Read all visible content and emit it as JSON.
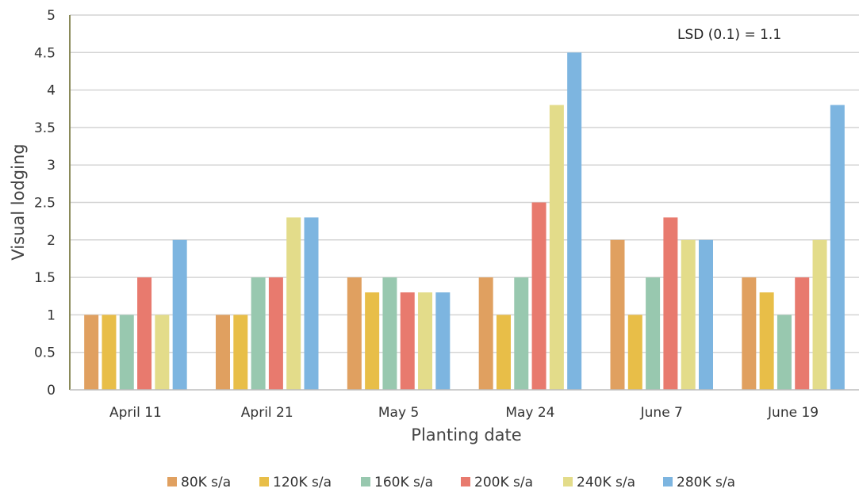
{
  "chart_data": {
    "type": "bar",
    "title": "",
    "xlabel": "Planting date",
    "ylabel": "Visual lodging",
    "ylim": [
      0,
      5
    ],
    "yticks": [
      "0",
      "0.5",
      "1",
      "1.5",
      "2",
      "2.5",
      "3",
      "3.5",
      "4",
      "4.5",
      "5"
    ],
    "ytick_values": [
      0,
      0.5,
      1,
      1.5,
      2,
      2.5,
      3,
      3.5,
      4,
      4.5,
      5
    ],
    "grid": true,
    "legend_position": "bottom",
    "annotation": "LSD (0.1) = 1.1",
    "categories": [
      "April 11",
      "April 21",
      "May 5",
      "May 24",
      "June 7",
      "June 19"
    ],
    "series": [
      {
        "name": "80K s/a",
        "color": "#E0A060",
        "values": [
          1,
          1,
          1.5,
          1.5,
          2,
          1.5
        ]
      },
      {
        "name": "120K s/a",
        "color": "#E8BE48",
        "values": [
          1,
          1,
          1.3,
          1,
          1,
          1.3
        ]
      },
      {
        "name": "160K s/a",
        "color": "#98C8AF",
        "values": [
          1,
          1.5,
          1.5,
          1.5,
          1.5,
          1
        ]
      },
      {
        "name": "200K s/a",
        "color": "#E87A6E",
        "values": [
          1.5,
          1.5,
          1.3,
          2.5,
          2.3,
          1.5
        ]
      },
      {
        "name": "240K s/a",
        "color": "#E3DC8A",
        "values": [
          1,
          2.3,
          1.3,
          3.8,
          2,
          2
        ]
      },
      {
        "name": "280K s/a",
        "color": "#7DB5E0",
        "values": [
          2,
          2.3,
          1.3,
          4.5,
          2,
          3.8
        ]
      }
    ]
  }
}
